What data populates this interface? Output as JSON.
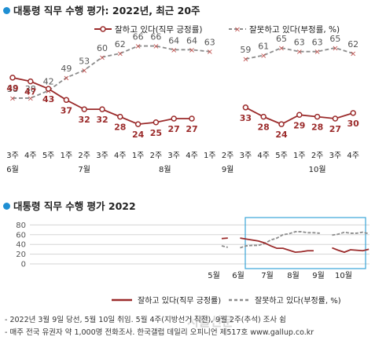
{
  "chart1": {
    "title": "대통령 직무 수행 평가: 2022년, 최근 20주",
    "legend": {
      "approve": "잘하고 있다(직무 긍정률)",
      "disapprove": "잘못하고 있다(부정률, %)"
    },
    "week_labels": [
      "3주",
      "4주",
      "5주",
      "1주",
      "2주",
      "3주",
      "4주",
      "1주",
      "2주",
      "3주",
      "4주",
      "1주",
      "2주",
      "3주",
      "4주",
      "5주",
      "1주",
      "2주",
      "3주",
      "4주"
    ],
    "month_labels": [
      "6월",
      "7월",
      "8월",
      "9월",
      "10월"
    ]
  },
  "chart2": {
    "title": "대통령 직무 수행 평가 2022",
    "y_ticks": [
      "80",
      "60",
      "40",
      "20",
      "0"
    ],
    "month_labels": [
      "5월",
      "6월",
      "7월",
      "8월",
      "9월",
      "10월"
    ],
    "legend": {
      "approve": "잘하고 있다(직무 긍정률)",
      "disapprove": "잘못하고 있다(부정률, %)"
    }
  },
  "notes": [
    "- 2022년 3월 9일 당선, 5월 10일 취임. 5월 4주(지방선거 직전), 9월 2주(추석) 조사 쉼",
    "- 매주 전국 유권자 약 1,000명 전화조사. 한국갤럽 데일리 오피니언 제517호 www.gallup.co.kr"
  ],
  "colors": {
    "approve": "#9b2b2b",
    "disapprove": "#8c8c8c",
    "title_dot": "#1f8fd3",
    "highlight_box": "#3aa5d8"
  },
  "chart_data": [
    {
      "type": "line",
      "title": "대통령 직무 수행 평가: 2022년, 최근 20주",
      "categories": [
        "6월 3주",
        "6월 4주",
        "6월 5주",
        "7월 1주",
        "7월 2주",
        "7월 3주",
        "7월 4주",
        "8월 1주",
        "8월 2주",
        "8월 3주",
        "8월 4주",
        "9월 1주",
        "9월 2주",
        "9월 3주",
        "9월 4주",
        "9월 5주",
        "10월 1주",
        "10월 2주",
        "10월 3주",
        "10월 4주"
      ],
      "series": [
        {
          "name": "잘하고 있다(직무 긍정률)",
          "values": [
            49,
            47,
            43,
            37,
            32,
            32,
            28,
            24,
            25,
            27,
            27,
            null,
            null,
            33,
            28,
            24,
            29,
            28,
            27,
            30
          ]
        },
        {
          "name": "잘못하고 있다(부정률, %)",
          "values": [
            38,
            38,
            42,
            49,
            53,
            60,
            62,
            66,
            66,
            64,
            64,
            63,
            null,
            59,
            61,
            65,
            63,
            63,
            65,
            62
          ]
        }
      ]
    },
    {
      "type": "line",
      "title": "대통령 직무 수행 평가 2022",
      "ylim": [
        0,
        80
      ],
      "x_labels": [
        "5월",
        "6월",
        "7월",
        "8월",
        "9월",
        "10월"
      ],
      "series": [
        {
          "name": "잘하고 있다(직무 긍정률)",
          "values": [
            52,
            53,
            null,
            53,
            51,
            49,
            47,
            43,
            37,
            32,
            32,
            28,
            24,
            25,
            27,
            27,
            null,
            null,
            33,
            28,
            24,
            29,
            28,
            27,
            30
          ]
        },
        {
          "name": "잘못하고 있다(부정률, %)",
          "values": [
            37,
            34,
            null,
            33,
            37,
            38,
            38,
            42,
            49,
            53,
            60,
            62,
            66,
            66,
            64,
            64,
            63,
            null,
            59,
            61,
            65,
            63,
            63,
            65,
            62
          ]
        }
      ]
    }
  ]
}
